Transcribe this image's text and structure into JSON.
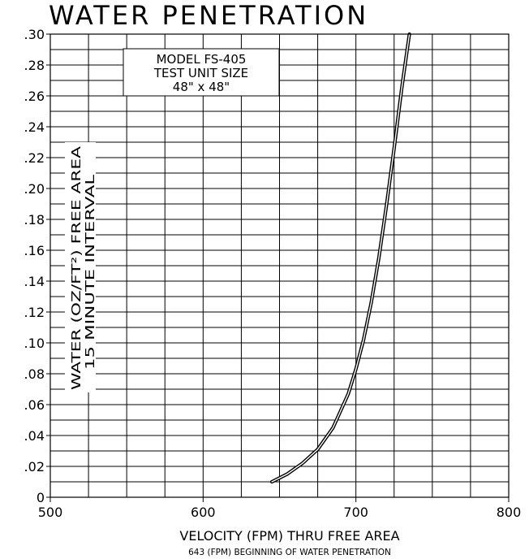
{
  "chart_data": {
    "type": "line",
    "title": "WATER PENETRATION",
    "xlabel": "VELOCITY (FPM) THRU FREE AREA",
    "xlabel_note": "643 (FPM) BEGINNING OF WATER PENETRATION",
    "ylabel_line1": "WATER (OZ/FT²) FREE AREA",
    "ylabel_line2": "15 MINUTE INTERVAL",
    "legend_lines": [
      "MODEL FS-405",
      "TEST UNIT SIZE",
      "48\" x 48\""
    ],
    "legend_placement": "top-center",
    "xlim": [
      500,
      800
    ],
    "ylim": [
      0,
      0.3
    ],
    "x_ticks": [
      500,
      600,
      700,
      800
    ],
    "x_tick_labels": [
      "500",
      "600",
      "700",
      "800"
    ],
    "y_ticks": [
      0,
      0.02,
      0.04,
      0.06,
      0.08,
      0.1,
      0.12,
      0.14,
      0.16,
      0.18,
      0.2,
      0.22,
      0.24,
      0.26,
      0.28,
      0.3
    ],
    "y_tick_labels": [
      "0",
      ".02",
      ".04",
      ".06",
      ".08",
      ".10",
      ".12",
      ".14",
      ".16",
      ".18",
      ".20",
      ".22",
      ".24",
      ".26",
      ".28",
      ".30"
    ],
    "grid": true,
    "grid_x_step": 25,
    "grid_y_step": 0.01,
    "series": [
      {
        "color": "#000000",
        "x": [
          645,
          655,
          665,
          675,
          685,
          695,
          700,
          705,
          710,
          715,
          720,
          725,
          730,
          735
        ],
        "y": [
          0.01,
          0.015,
          0.022,
          0.031,
          0.045,
          0.067,
          0.083,
          0.102,
          0.126,
          0.155,
          0.189,
          0.226,
          0.265,
          0.3
        ]
      }
    ]
  }
}
